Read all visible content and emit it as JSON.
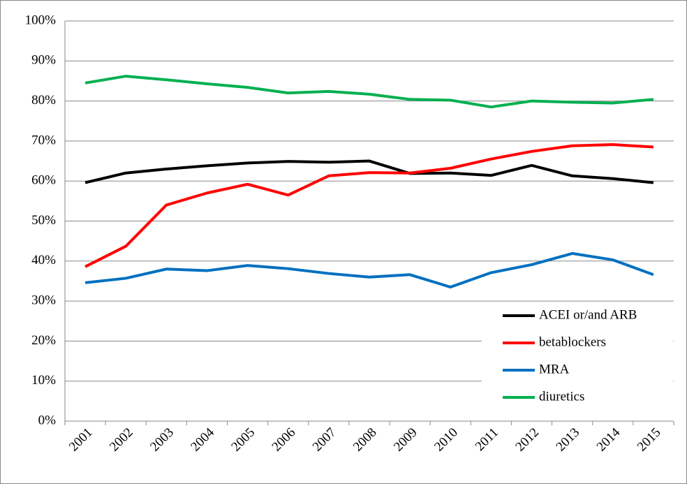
{
  "chart_data": {
    "type": "line",
    "categories": [
      "2001",
      "2002",
      "2003",
      "2004",
      "2005",
      "2006",
      "2007",
      "2008",
      "2009",
      "2010",
      "2011",
      "2012",
      "2013",
      "2014",
      "2015"
    ],
    "series": [
      {
        "name": "ACEI or/and ARB",
        "color": "#000000",
        "values": [
          59.6,
          62,
          63,
          63.8,
          64.5,
          64.9,
          64.7,
          65,
          61.9,
          62,
          61.4,
          63.9,
          61.3,
          60.6,
          59.6
        ]
      },
      {
        "name": "betablockers",
        "color": "#ff0000",
        "values": [
          38.6,
          43.7,
          54,
          57,
          59.2,
          56.5,
          61.3,
          62.1,
          62,
          63.2,
          65.5,
          67.4,
          68.8,
          69.1,
          68.5
        ]
      },
      {
        "name": "MRA",
        "color": "#0070c0",
        "values": [
          34.6,
          35.7,
          38,
          37.6,
          38.9,
          38.1,
          36.9,
          36,
          36.6,
          33.5,
          37.1,
          39.1,
          41.9,
          40.3,
          36.6
        ]
      },
      {
        "name": "diuretics",
        "color": "#00b050",
        "values": [
          84.5,
          86.2,
          85.3,
          84.3,
          83.4,
          82,
          82.4,
          81.7,
          80.4,
          80.2,
          78.5,
          80,
          79.7,
          79.5,
          80.4
        ]
      }
    ],
    "ylim": [
      0,
      100
    ],
    "yticks": [
      {
        "value": 0,
        "label": "0%"
      },
      {
        "value": 10,
        "label": "10%"
      },
      {
        "value": 20,
        "label": "20%"
      },
      {
        "value": 30,
        "label": "30%"
      },
      {
        "value": 40,
        "label": "40%"
      },
      {
        "value": 50,
        "label": "50%"
      },
      {
        "value": 60,
        "label": "60%"
      },
      {
        "value": 70,
        "label": "70%"
      },
      {
        "value": 80,
        "label": "80%"
      },
      {
        "value": 90,
        "label": "90%"
      },
      {
        "value": 100,
        "label": "100%"
      }
    ],
    "grid": true,
    "legend": "lower right"
  }
}
